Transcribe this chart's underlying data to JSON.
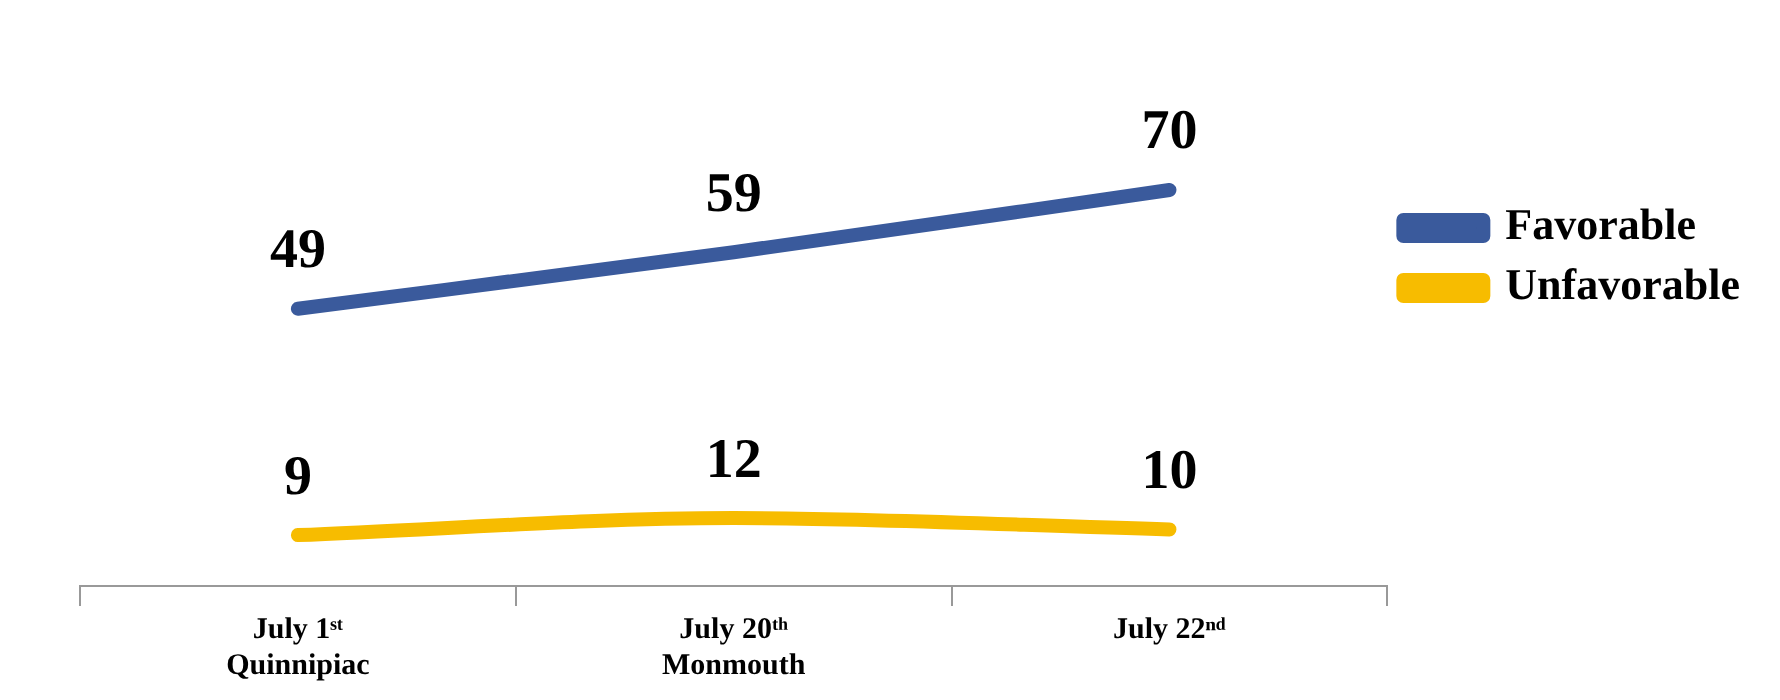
{
  "chart_data": {
    "type": "line",
    "categories": [
      "July 1ˢᵗ\nQuinnipiac",
      "July 20ᵗʰ\nMonmouth",
      "July 22ⁿᵈ"
    ],
    "series": [
      {
        "name": "Favorable",
        "color": "#3a5a9c",
        "values": [
          49,
          59,
          70
        ]
      },
      {
        "name": "Unfavorable",
        "color": "#f7bc00",
        "values": [
          9,
          12,
          10
        ]
      }
    ],
    "tick_labels": "x",
    "legend": "top right",
    "data_labels": true,
    "marker": "none",
    "line_style": "solid",
    "grid": false
  }
}
